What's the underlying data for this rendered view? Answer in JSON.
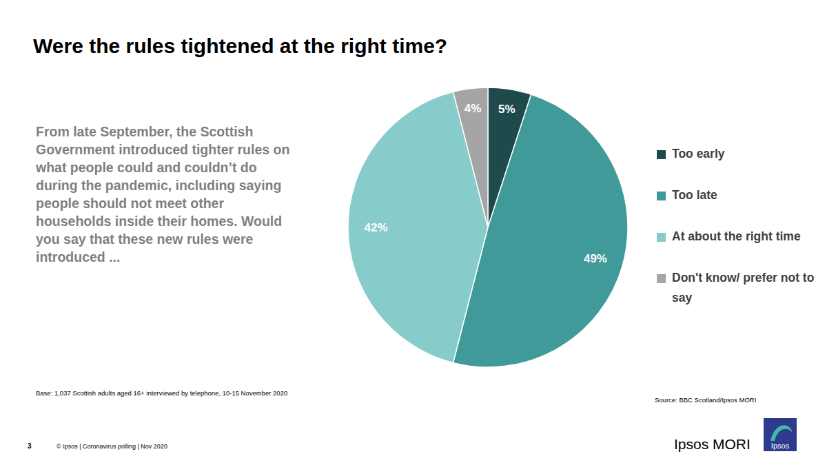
{
  "chart_data": {
    "type": "pie",
    "title": "Were the rules tightened at the right time?",
    "subtitle": "From late September, the Scottish Government introduced tighter rules on what people could and couldn’t do during the pandemic, including saying people should not meet other households inside their homes. Would you say that these new rules were introduced ...",
    "categories": [
      "Too early",
      "Too late",
      "At about the right time",
      "Don't know/ prefer not to say"
    ],
    "values": [
      5,
      49,
      42,
      4
    ],
    "value_labels": [
      "5%",
      "49%",
      "42%",
      "4%"
    ],
    "colors": [
      "#1f4a4b",
      "#409a99",
      "#87cbca",
      "#a5a5a5"
    ],
    "data_labels": true,
    "legend": "right",
    "note": "Base: 1,037 Scottish adults aged 16+ interviewed by telephone, 10-15 November 2020",
    "source": "Source: BBC Scotland/Ipsos MORI"
  },
  "footer": {
    "page": "3",
    "text": "© Ipsos | Coronavirus polling | Nov 2020",
    "brand": "Ipsos MORI",
    "logo": "Ipsos"
  }
}
